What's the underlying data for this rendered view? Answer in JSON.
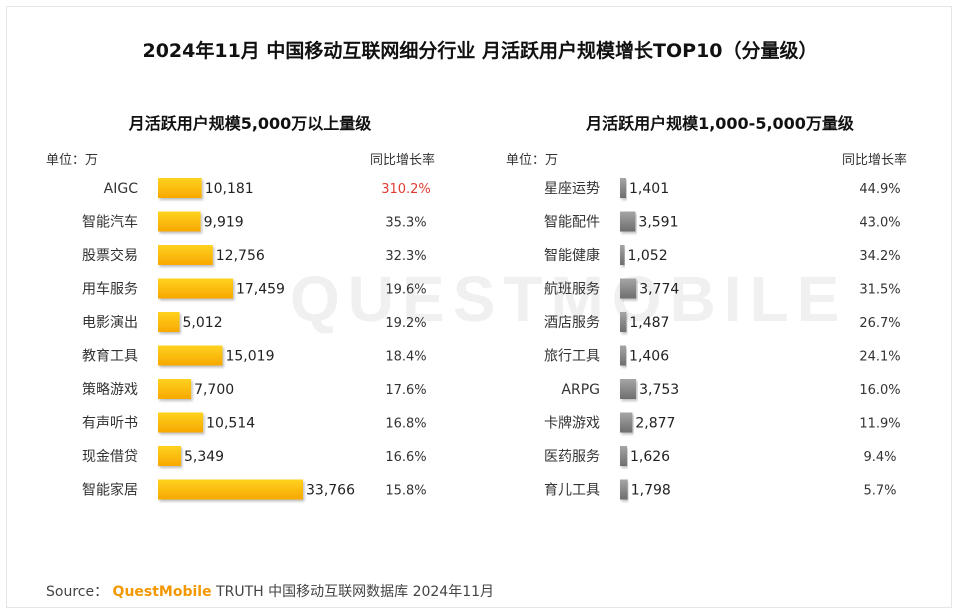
{
  "title": "2024年11月 中国移动互联网细分行业 月活跃用户规模增长TOP10（分量级）",
  "watermark": "QUESTMOBILE",
  "source": {
    "label": "Source：",
    "brand": "QuestMobile",
    "rest": "TRUTH 中国移动互联网数据库 2024年11月"
  },
  "colors": {
    "left_bar_top": "#ffd21f",
    "left_bar_bottom": "#f7a800",
    "right_bar_top": "#a6a6a6",
    "right_bar_bottom": "#6e6e6e",
    "highlight": "#e03c31"
  },
  "chart_data": [
    {
      "type": "bar",
      "orientation": "horizontal",
      "title": "月活跃用户规模5,000万以上量级",
      "unit_label": "单位：万",
      "growth_header": "同比增长率",
      "categories": [
        "AIGC",
        "智能汽车",
        "股票交易",
        "用车服务",
        "电影演出",
        "教育工具",
        "策略游戏",
        "有声听书",
        "现金借贷",
        "智能家居"
      ],
      "values": [
        10181,
        9919,
        12756,
        17459,
        5012,
        15019,
        7700,
        10514,
        5349,
        33766
      ],
      "value_labels": [
        "10,181",
        "9,919",
        "12,756",
        "17,459",
        "5,012",
        "15,019",
        "7,700",
        "10,514",
        "5,349",
        "33,766"
      ],
      "growth": [
        "310.2%",
        "35.3%",
        "32.3%",
        "19.6%",
        "19.2%",
        "18.4%",
        "17.6%",
        "16.8%",
        "16.6%",
        "15.8%"
      ],
      "highlight_index": 0,
      "xlim": [
        0,
        35000
      ]
    },
    {
      "type": "bar",
      "orientation": "horizontal",
      "title": "月活跃用户规模1,000-5,000万量级",
      "unit_label": "单位：万",
      "growth_header": "同比增长率",
      "categories": [
        "星座运势",
        "智能配件",
        "智能健康",
        "航班服务",
        "酒店服务",
        "旅行工具",
        "ARPG",
        "卡牌游戏",
        "医药服务",
        "育儿工具"
      ],
      "values": [
        1401,
        3591,
        1052,
        3774,
        1487,
        1406,
        3753,
        2877,
        1626,
        1798
      ],
      "value_labels": [
        "1,401",
        "3,591",
        "1,052",
        "3,774",
        "1,487",
        "1,406",
        "3,753",
        "2,877",
        "1,626",
        "1,798"
      ],
      "growth": [
        "44.9%",
        "43.0%",
        "34.2%",
        "31.5%",
        "26.7%",
        "24.1%",
        "16.0%",
        "11.9%",
        "9.4%",
        "5.7%"
      ],
      "highlight_index": -1,
      "xlim": [
        0,
        35000
      ]
    }
  ]
}
